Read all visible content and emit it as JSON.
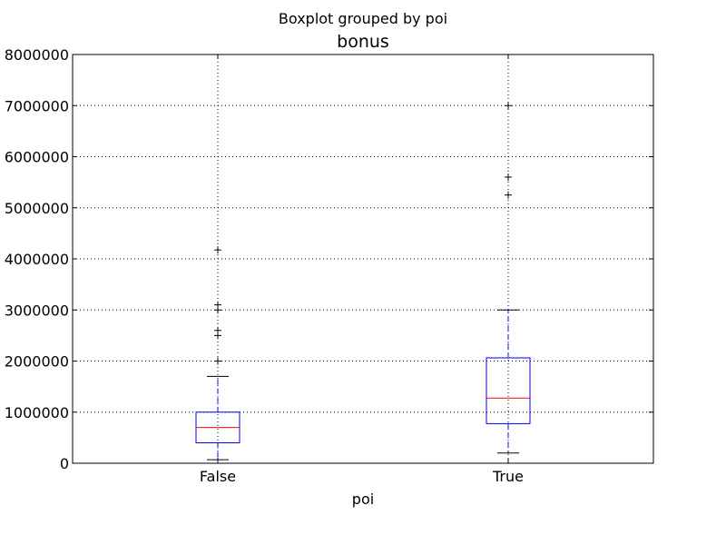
{
  "figure": {
    "suptitle": "Boxplot grouped by poi"
  },
  "chart_data": {
    "type": "boxplot",
    "title": "bonus",
    "xlabel": "poi",
    "ylabel": "",
    "categories": [
      "False",
      "True"
    ],
    "ylim": [
      0,
      8000000
    ],
    "yticks": [
      0,
      1000000,
      2000000,
      3000000,
      4000000,
      5000000,
      6000000,
      7000000,
      8000000
    ],
    "ytick_labels": [
      "0",
      "1000000",
      "2000000",
      "3000000",
      "4000000",
      "5000000",
      "6000000",
      "7000000",
      "8000000"
    ],
    "grid": true,
    "boxes": [
      {
        "category": "False",
        "whisker_low": 70000,
        "q1": 400000,
        "median": 700000,
        "q3": 1000000,
        "whisker_high": 1700000,
        "outliers": [
          2000000,
          2500000,
          2600000,
          3000000,
          3100000,
          4175000
        ]
      },
      {
        "category": "True",
        "whisker_low": 200000,
        "q1": 775000,
        "median": 1275000,
        "q3": 2062500,
        "whisker_high": 3000000,
        "outliers": [
          5249999,
          5600000,
          7000000
        ]
      }
    ],
    "colors": {
      "box": "#0000ff",
      "median": "#ff0000",
      "whisker": "#0000ff",
      "cap": "#000000",
      "flier": "#000000"
    }
  }
}
